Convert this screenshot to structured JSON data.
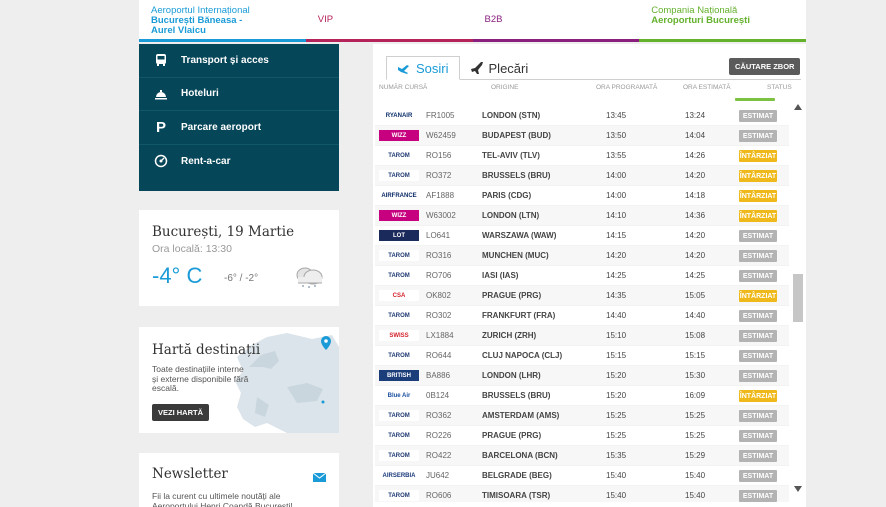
{
  "topnav": {
    "tab1": [
      "Aeroportul Internațional",
      "București Băneasa -",
      "Aurel Vlaicu"
    ],
    "tab2": "VIP",
    "tab3": "B2B",
    "tab4": [
      "Compania Națională",
      "Aeroporturi București"
    ]
  },
  "services": [
    {
      "label": "Transport și acces",
      "icon": "bus-icon"
    },
    {
      "label": "Hoteluri",
      "icon": "bell-icon"
    },
    {
      "label": "Parcare aeroport",
      "icon": "parking-icon"
    },
    {
      "label": "Rent-a-car",
      "icon": "car-icon"
    }
  ],
  "weather": {
    "city": "București, 19 Martie",
    "localtime": "Ora locală: 13:30",
    "temp": "-4° C",
    "range": "-6° / -2°"
  },
  "map": {
    "title": "Hartă destinații",
    "desc": "Toate destinațiile interne și externe disponibile fără escală.",
    "button": "VEZI HARTĂ"
  },
  "newsletter": {
    "title": "Newsletter",
    "desc": "Fii la curent cu ultimele noutăți ale Aeroportului Henri Coandă București!"
  },
  "flights": {
    "tab_arrivals": "Sosiri",
    "tab_departures": "Plecări",
    "search_button": "CĂUTARE ZBOR",
    "columns": [
      "NUMĂR CURSĂ",
      "ORIGINE",
      "ORA PROGRAMATĂ",
      "ORA ESTIMATĂ",
      "STATUS"
    ],
    "rows": [
      {
        "logo": "RYANAIR",
        "logo_color": "#0c2f6b",
        "logo_bg": "#ffffff",
        "num": "FR1005",
        "orig": "LONDON (STN)",
        "sched": "13:45",
        "est": "13:24",
        "status": "ESTIMAT",
        "status_kind": "gray"
      },
      {
        "logo": "WIZZ",
        "logo_color": "#ffffff",
        "logo_bg": "#c6007e",
        "num": "W62459",
        "orig": "BUDAPEST (BUD)",
        "sched": "13:50",
        "est": "14:04",
        "status": "ESTIMAT",
        "status_kind": "gray"
      },
      {
        "logo": "TAROM",
        "logo_color": "#1f3a72",
        "logo_bg": "#ffffff",
        "num": "RO156",
        "orig": "TEL-AVIV (TLV)",
        "sched": "13:55",
        "est": "14:26",
        "status": "ÎNTÂRZIAT",
        "status_kind": "yellow"
      },
      {
        "logo": "TAROM",
        "logo_color": "#1f3a72",
        "logo_bg": "#ffffff",
        "num": "RO372",
        "orig": "BRUSSELS (BRU)",
        "sched": "14:00",
        "est": "14:20",
        "status": "ÎNTÂRZIAT",
        "status_kind": "yellow"
      },
      {
        "logo": "AIRFRANCE",
        "logo_color": "#0b2a66",
        "logo_bg": "#ffffff",
        "num": "AF1888",
        "orig": "PARIS (CDG)",
        "sched": "14:00",
        "est": "14:18",
        "status": "ÎNTÂRZIAT",
        "status_kind": "yellow"
      },
      {
        "logo": "WIZZ",
        "logo_color": "#ffffff",
        "logo_bg": "#c6007e",
        "num": "W63002",
        "orig": "LONDON (LTN)",
        "sched": "14:10",
        "est": "14:36",
        "status": "ÎNTÂRZIAT",
        "status_kind": "yellow"
      },
      {
        "logo": "LOT",
        "logo_color": "#ffffff",
        "logo_bg": "#1a2a5a",
        "num": "LO641",
        "orig": "WARSZAWA (WAW)",
        "sched": "14:15",
        "est": "14:20",
        "status": "ESTIMAT",
        "status_kind": "gray"
      },
      {
        "logo": "TAROM",
        "logo_color": "#1f3a72",
        "logo_bg": "#ffffff",
        "num": "RO316",
        "orig": "MUNCHEN (MUC)",
        "sched": "14:20",
        "est": "14:20",
        "status": "ESTIMAT",
        "status_kind": "gray"
      },
      {
        "logo": "TAROM",
        "logo_color": "#1f3a72",
        "logo_bg": "#ffffff",
        "num": "RO706",
        "orig": "IASI (IAS)",
        "sched": "14:25",
        "est": "14:25",
        "status": "ESTIMAT",
        "status_kind": "gray"
      },
      {
        "logo": "CSA",
        "logo_color": "#d2232a",
        "logo_bg": "#ffffff",
        "num": "OK802",
        "orig": "PRAGUE (PRG)",
        "sched": "14:35",
        "est": "15:05",
        "status": "ÎNTÂRZIAT",
        "status_kind": "yellow"
      },
      {
        "logo": "TAROM",
        "logo_color": "#1f3a72",
        "logo_bg": "#ffffff",
        "num": "RO302",
        "orig": "FRANKFURT (FRA)",
        "sched": "14:40",
        "est": "14:40",
        "status": "ESTIMAT",
        "status_kind": "gray"
      },
      {
        "logo": "SWISS",
        "logo_color": "#d2232a",
        "logo_bg": "#ffffff",
        "num": "LX1884",
        "orig": "ZURICH (ZRH)",
        "sched": "15:10",
        "est": "15:08",
        "status": "ESTIMAT",
        "status_kind": "gray"
      },
      {
        "logo": "TAROM",
        "logo_color": "#1f3a72",
        "logo_bg": "#ffffff",
        "num": "RO644",
        "orig": "CLUJ NAPOCA (CLJ)",
        "sched": "15:15",
        "est": "15:15",
        "status": "ESTIMAT",
        "status_kind": "gray"
      },
      {
        "logo": "BRITISH",
        "logo_color": "#ffffff",
        "logo_bg": "#1b3d7a",
        "num": "BA886",
        "orig": "LONDON (LHR)",
        "sched": "15:20",
        "est": "15:30",
        "status": "ESTIMAT",
        "status_kind": "gray"
      },
      {
        "logo": "Blue Air",
        "logo_color": "#1a4fa0",
        "logo_bg": "#ffffff",
        "num": "0B124",
        "orig": "BRUSSELS (BRU)",
        "sched": "15:20",
        "est": "16:09",
        "status": "ÎNTÂRZIAT",
        "status_kind": "yellow"
      },
      {
        "logo": "TAROM",
        "logo_color": "#1f3a72",
        "logo_bg": "#ffffff",
        "num": "RO362",
        "orig": "AMSTERDAM (AMS)",
        "sched": "15:25",
        "est": "15:25",
        "status": "ESTIMAT",
        "status_kind": "gray"
      },
      {
        "logo": "TAROM",
        "logo_color": "#1f3a72",
        "logo_bg": "#ffffff",
        "num": "RO226",
        "orig": "PRAGUE (PRG)",
        "sched": "15:25",
        "est": "15:25",
        "status": "ESTIMAT",
        "status_kind": "gray"
      },
      {
        "logo": "TAROM",
        "logo_color": "#1f3a72",
        "logo_bg": "#ffffff",
        "num": "RO422",
        "orig": "BARCELONA (BCN)",
        "sched": "15:35",
        "est": "15:29",
        "status": "ESTIMAT",
        "status_kind": "gray"
      },
      {
        "logo": "AIRSERBIA",
        "logo_color": "#1a3a7a",
        "logo_bg": "#ffffff",
        "num": "JU642",
        "orig": "BELGRADE (BEG)",
        "sched": "15:40",
        "est": "15:40",
        "status": "ESTIMAT",
        "status_kind": "gray"
      },
      {
        "logo": "TAROM",
        "logo_color": "#1f3a72",
        "logo_bg": "#ffffff",
        "num": "RO606",
        "orig": "TIMISOARA (TSR)",
        "sched": "15:40",
        "est": "15:40",
        "status": "ESTIMAT",
        "status_kind": "gray"
      }
    ]
  },
  "colors": {
    "blue": "#1a9bd7",
    "vip": "#b5235b",
    "b2b": "#8a1f7e",
    "green": "#64b12c",
    "services_bg": "#064659",
    "delayed": "#f0b91b",
    "estimated": "#b3b3b3"
  }
}
